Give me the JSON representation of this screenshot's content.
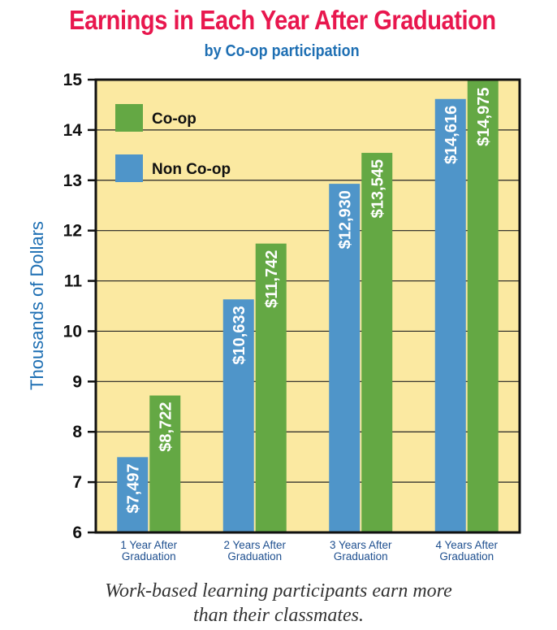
{
  "chart_data": {
    "type": "bar",
    "title": "Earnings in Each Year After Graduation",
    "subtitle": "by Co-op participation",
    "ylabel": "Thousands of Dollars",
    "xlabel": "",
    "ylim": [
      6,
      15
    ],
    "yticks": [
      6,
      7,
      8,
      9,
      10,
      11,
      12,
      13,
      14,
      15
    ],
    "grid": true,
    "legend_position": "top-left",
    "categories": [
      [
        "1 Year After",
        "Graduation"
      ],
      [
        "2 Years After",
        "Graduation"
      ],
      [
        "3 Years After",
        "Graduation"
      ],
      [
        "4 Years After",
        "Graduation"
      ]
    ],
    "series": [
      {
        "name": "Non Co-op",
        "color": "#4f95c9",
        "values": [
          7.497,
          10.633,
          12.93,
          14.616
        ],
        "labels": [
          "$7,497",
          "$10,633",
          "$12,930",
          "$14,616"
        ]
      },
      {
        "name": "Co-op",
        "color": "#64a844",
        "values": [
          8.722,
          11.742,
          13.545,
          14.975
        ],
        "labels": [
          "$8,722",
          "$11,742",
          "$13,545",
          "$14,975"
        ]
      }
    ],
    "legend": [
      {
        "name": "Co-op",
        "color": "#64a844"
      },
      {
        "name": "Non Co-op",
        "color": "#4f95c9"
      }
    ],
    "plot_background": "#fbe9a1"
  },
  "caption": {
    "line1": "Work-based learning participants earn more",
    "line2": "than their classmates."
  }
}
